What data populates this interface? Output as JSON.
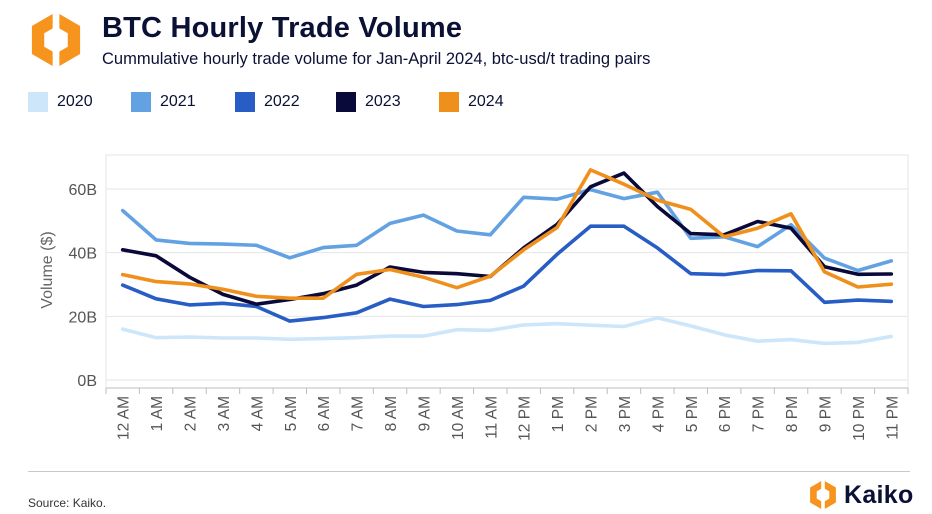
{
  "header": {
    "title": "BTC Hourly Trade Volume",
    "subtitle": "Cummulative hourly trade volume for Jan-April 2024, btc-usd/t trading pairs"
  },
  "footer": {
    "source": "Source: Kaiko.",
    "brand": "Kaiko"
  },
  "colors": {
    "brand_orange": "#f7941d",
    "text": "#0b1035"
  },
  "icons": {
    "logo": "kaiko-logo-icon"
  },
  "chart_data": {
    "type": "line",
    "title": "BTC Hourly Trade Volume",
    "ylabel": "Volume ($)",
    "xlabel": "",
    "ylim": [
      0,
      70
    ],
    "yticks": [
      0,
      20,
      40,
      60
    ],
    "ytick_labels": [
      "0B",
      "20B",
      "40B",
      "60B"
    ],
    "grid": "horizontal",
    "legend_position": "top-left",
    "categories": [
      "12 AM",
      "1 AM",
      "2 AM",
      "3 AM",
      "4 AM",
      "5 AM",
      "6 AM",
      "7 AM",
      "8 AM",
      "9 AM",
      "10 AM",
      "11 AM",
      "12 PM",
      "1 PM",
      "2 PM",
      "3 PM",
      "4 PM",
      "5 PM",
      "6 PM",
      "7 PM",
      "8 PM",
      "9 PM",
      "10 PM",
      "11 PM"
    ],
    "series": [
      {
        "name": "2020",
        "color": "#cde6f9",
        "values": [
          16,
          13.3,
          13.5,
          13.2,
          13.2,
          12.8,
          13,
          13.3,
          13.8,
          13.8,
          15.8,
          15.6,
          17.3,
          17.7,
          17.2,
          16.8,
          19.5,
          17,
          14.2,
          12.2,
          12.7,
          11.5,
          11.8,
          13.7
        ]
      },
      {
        "name": "2021",
        "color": "#63a2e2",
        "values": [
          53.2,
          44,
          42.9,
          42.7,
          42.3,
          38.4,
          41.6,
          42.3,
          49.2,
          51.8,
          46.8,
          45.6,
          57.4,
          56.8,
          59.8,
          57,
          59,
          44.5,
          45,
          41.9,
          48.8,
          38.3,
          34.4,
          37.4
        ]
      },
      {
        "name": "2022",
        "color": "#275dc4",
        "values": [
          29.8,
          25.5,
          23.6,
          24.1,
          23.1,
          18.5,
          19.6,
          21.1,
          25.4,
          23.1,
          23.7,
          25,
          29.5,
          39.5,
          48.3,
          48.3,
          41.5,
          33.4,
          33.1,
          34.4,
          34.3,
          24.4,
          25.1,
          24.7
        ]
      },
      {
        "name": "2023",
        "color": "#0a0a3a",
        "values": [
          40.9,
          39,
          32.3,
          26.9,
          23.8,
          25.3,
          27.1,
          29.8,
          35.5,
          33.8,
          33.4,
          32.5,
          41.5,
          48.9,
          60.7,
          65,
          54.5,
          46,
          45.6,
          49.8,
          47.7,
          35.6,
          33.2,
          33.3
        ]
      },
      {
        "name": "2024",
        "color": "#f0901c",
        "values": [
          33.1,
          30.9,
          30.2,
          28.5,
          26.3,
          25.7,
          25.7,
          33.2,
          34.7,
          32.3,
          29,
          32.6,
          40.9,
          47.9,
          66,
          61.5,
          56.5,
          53.6,
          45,
          47.7,
          52.2,
          34,
          29.2,
          30.1
        ]
      }
    ]
  }
}
